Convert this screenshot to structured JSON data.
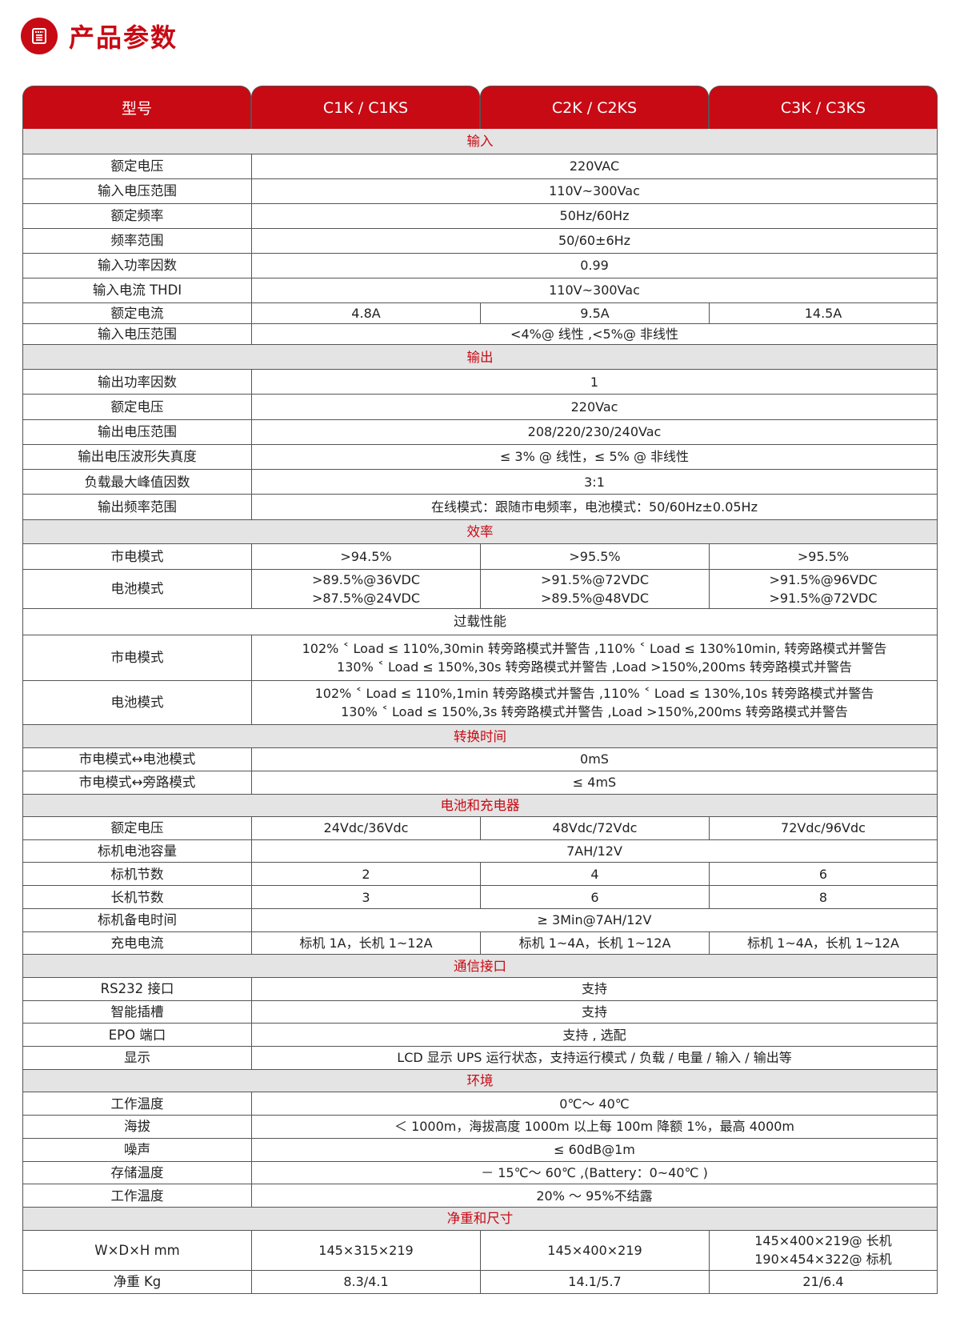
{
  "header": {
    "title": "产品参数",
    "icon": "document-list-icon",
    "accent": "#c80a14"
  },
  "columns": [
    "型号",
    "C1K / C1KS",
    "C2K / C2KS",
    "C3K / C3KS"
  ],
  "rows": [
    {
      "type": "section",
      "label": "输入"
    },
    {
      "type": "span",
      "label": "额定电压",
      "value": "220VAC"
    },
    {
      "type": "span",
      "label": "输入电压范围",
      "value": "110V~300Vac"
    },
    {
      "type": "span",
      "label": "额定频率",
      "value": "50Hz/60Hz"
    },
    {
      "type": "span",
      "label": "频率范围",
      "value": "50/60±6Hz"
    },
    {
      "type": "span",
      "label": "输入功率因数",
      "value": "0.99"
    },
    {
      "type": "span",
      "label": "输入电流 THDI",
      "value": "110V~300Vac"
    },
    {
      "type": "split",
      "label": "额定电流",
      "values": [
        "4.8A",
        "9.5A",
        "14.5A"
      ]
    },
    {
      "type": "span",
      "label": "输入电压范围",
      "value": "<4%@ 线性 ,<5%@ 非线性"
    },
    {
      "type": "section",
      "label": "输出"
    },
    {
      "type": "span",
      "label": "输出功率因数",
      "value": "1"
    },
    {
      "type": "span",
      "label": "额定电压",
      "value": "220Vac"
    },
    {
      "type": "span",
      "label": "输出电压范围",
      "value": "208/220/230/240Vac"
    },
    {
      "type": "span",
      "label": "输出电压波形失真度",
      "value": "≤ 3% @ 线性，≤ 5% @ 非线性"
    },
    {
      "type": "span",
      "label": "负载最大峰值因数",
      "value": "3:1"
    },
    {
      "type": "span",
      "label": "输出频率范围",
      "value": "在线模式：跟随市电频率，电池模式：50/60Hz±0.05Hz"
    },
    {
      "type": "section",
      "label": "效率"
    },
    {
      "type": "split",
      "label": "市电模式",
      "values": [
        ">94.5%",
        ">95.5%",
        ">95.5%"
      ]
    },
    {
      "type": "split",
      "label": "电池模式",
      "values": [
        ">89.5%@36VDC\n>87.5%@24VDC",
        ">91.5%@72VDC\n>89.5%@48VDC",
        ">91.5%@96VDC\n>91.5%@72VDC"
      ]
    },
    {
      "type": "plain",
      "label": "过载性能"
    },
    {
      "type": "span",
      "label": "市电模式",
      "value": "102% ˂ Load ≤ 110%,30min 转旁路模式并警告 ,110% ˂ Load ≤ 130%10min, 转旁路模式并警告\n130% ˂ Load ≤ 150%,30s 转旁路模式并警告 ,Load >150%,200ms 转旁路模式并警告"
    },
    {
      "type": "span",
      "label": "电池模式",
      "value": "102% ˂ Load ≤ 110%,1min 转旁路模式并警告 ,110% ˂ Load ≤ 130%,10s 转旁路模式并警告\n130% ˂ Load ≤ 150%,3s 转旁路模式并警告 ,Load >150%,200ms 转旁路模式并警告"
    },
    {
      "type": "section",
      "label": "转换时间"
    },
    {
      "type": "span",
      "label": "市电模式↔电池模式",
      "value": "0mS"
    },
    {
      "type": "span",
      "label": "市电模式↔旁路模式",
      "value": "≤ 4mS"
    },
    {
      "type": "section",
      "label": "电池和充电器"
    },
    {
      "type": "split",
      "label": "额定电压",
      "values": [
        "24Vdc/36Vdc",
        "48Vdc/72Vdc",
        "72Vdc/96Vdc"
      ]
    },
    {
      "type": "span",
      "label": "标机电池容量",
      "value": "7AH/12V"
    },
    {
      "type": "split",
      "label": "标机节数",
      "values": [
        "2",
        "4",
        "6"
      ]
    },
    {
      "type": "split",
      "label": "长机节数",
      "values": [
        "3",
        "6",
        "8"
      ]
    },
    {
      "type": "span",
      "label": "标机备电时间",
      "value": "≥ 3Min@7AH/12V"
    },
    {
      "type": "split",
      "label": "充电电流",
      "values": [
        "标机 1A，长机 1~12A",
        "标机 1~4A，长机 1~12A",
        "标机 1~4A，长机 1~12A"
      ]
    },
    {
      "type": "section",
      "label": "通信接口"
    },
    {
      "type": "span",
      "label": "RS232 接口",
      "value": "支持"
    },
    {
      "type": "span",
      "label": "智能插槽",
      "value": "支持"
    },
    {
      "type": "span",
      "label": "EPO 端口",
      "value": "支持 , 选配"
    },
    {
      "type": "span",
      "label": "显示",
      "value": "LCD 显示 UPS 运行状态，支持运行模式 / 负载 / 电量 / 输入 / 输出等"
    },
    {
      "type": "section",
      "label": "环境"
    },
    {
      "type": "span",
      "label": "工作温度",
      "value": "0℃～ 40℃"
    },
    {
      "type": "span",
      "label": "海拔",
      "value": "＜ 1000m，海拔高度 1000m 以上每 100m 降额 1%，最高 4000m"
    },
    {
      "type": "span",
      "label": "噪声",
      "value": "≤ 60dB@1m"
    },
    {
      "type": "span",
      "label": "存储温度",
      "value": "－ 15℃～ 60℃ ,(Battery：0~40℃ )"
    },
    {
      "type": "span",
      "label": "工作温度",
      "value": "20% ～ 95%不结露"
    },
    {
      "type": "section",
      "label": "净重和尺寸"
    },
    {
      "type": "split",
      "label": "W×D×H mm",
      "values": [
        "145×315×219",
        "145×400×219",
        "145×400×219@ 长机\n190×454×322@ 标机"
      ]
    },
    {
      "type": "split",
      "label": "净重 Kg",
      "values": [
        "8.3/4.1",
        "14.1/5.7",
        "21/6.4"
      ]
    }
  ]
}
